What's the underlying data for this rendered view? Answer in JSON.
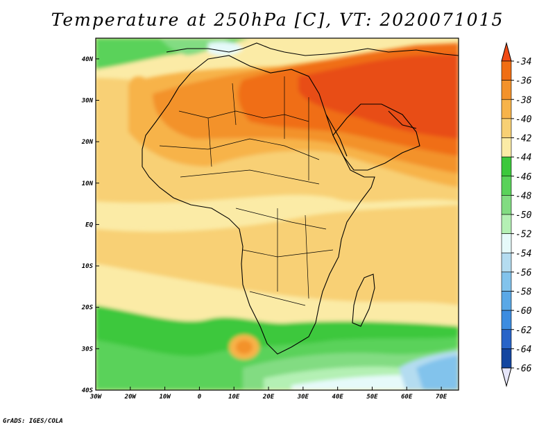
{
  "title": "Temperature at 250hPa [C], VT: 2020071015",
  "credit": "GrADS: IGES/COLA",
  "map": {
    "lon_ticks": [
      "30W",
      "20W",
      "10W",
      "0",
      "10E",
      "20E",
      "30E",
      "40E",
      "50E",
      "60E",
      "70E"
    ],
    "lat_ticks": [
      "40N",
      "30N",
      "20N",
      "10N",
      "EQ",
      "10S",
      "20S",
      "30S",
      "40S"
    ],
    "lon_range": [
      -30,
      75
    ],
    "lat_range": [
      -40,
      45
    ]
  },
  "colorbar": {
    "labels": [
      "-34",
      "-36",
      "-38",
      "-40",
      "-42",
      "-44",
      "-46",
      "-48",
      "-50",
      "-52",
      "-54",
      "-56",
      "-58",
      "-60",
      "-62",
      "-64",
      "-66"
    ],
    "colors": [
      "#f04a14",
      "#f06e14",
      "#f3922b",
      "#f7b34a",
      "#f8d074",
      "#fbeba6",
      "#3cc83c",
      "#5ad25a",
      "#82dc82",
      "#b4f0b4",
      "#e6fafa",
      "#b4dcf0",
      "#82c3ec",
      "#5aa8e6",
      "#3c8ce0",
      "#2864c8",
      "#1446a0",
      "#0a1e78",
      "#e6e6fa"
    ]
  }
}
